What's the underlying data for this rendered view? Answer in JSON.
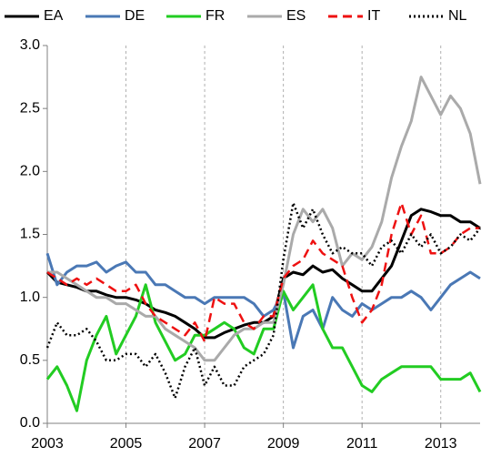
{
  "chart_data": {
    "type": "line",
    "x": [
      2003,
      2003.25,
      2003.5,
      2003.75,
      2004,
      2004.25,
      2004.5,
      2004.75,
      2005,
      2005.25,
      2005.5,
      2005.75,
      2006,
      2006.25,
      2006.5,
      2006.75,
      2007,
      2007.25,
      2007.5,
      2007.75,
      2008,
      2008.25,
      2008.5,
      2008.75,
      2009,
      2009.25,
      2009.5,
      2009.75,
      2010,
      2010.25,
      2010.5,
      2010.75,
      2011,
      2011.25,
      2011.5,
      2011.75,
      2012,
      2012.25,
      2012.5,
      2012.75,
      2013,
      2013.25,
      2013.5,
      2013.75,
      2014
    ],
    "series": [
      {
        "name": "EA",
        "color": "#000000",
        "style": "solid",
        "values": [
          1.2,
          1.12,
          1.1,
          1.08,
          1.05,
          1.05,
          1.02,
          1.0,
          1.0,
          0.98,
          0.95,
          0.9,
          0.88,
          0.85,
          0.8,
          0.75,
          0.68,
          0.68,
          0.72,
          0.75,
          0.78,
          0.8,
          0.8,
          0.85,
          1.15,
          1.2,
          1.18,
          1.25,
          1.2,
          1.22,
          1.15,
          1.1,
          1.05,
          1.05,
          1.15,
          1.25,
          1.45,
          1.65,
          1.7,
          1.68,
          1.65,
          1.65,
          1.6,
          1.6,
          1.55
        ]
      },
      {
        "name": "DE",
        "color": "#4a78b5",
        "style": "solid",
        "values": [
          1.35,
          1.1,
          1.2,
          1.25,
          1.25,
          1.28,
          1.2,
          1.25,
          1.28,
          1.2,
          1.2,
          1.1,
          1.1,
          1.05,
          1.0,
          1.0,
          0.95,
          1.0,
          1.0,
          1.0,
          1.0,
          0.95,
          0.85,
          0.9,
          1.05,
          0.6,
          0.85,
          0.9,
          0.75,
          1.0,
          0.9,
          0.85,
          0.95,
          0.9,
          0.95,
          1.0,
          1.0,
          1.05,
          1.0,
          0.9,
          1.0,
          1.1,
          1.15,
          1.2,
          1.15
        ]
      },
      {
        "name": "FR",
        "color": "#22cc22",
        "style": "solid",
        "values": [
          0.35,
          0.45,
          0.3,
          0.1,
          0.5,
          0.7,
          0.85,
          0.55,
          0.7,
          0.85,
          1.1,
          0.8,
          0.65,
          0.5,
          0.55,
          0.7,
          0.7,
          0.75,
          0.8,
          0.75,
          0.6,
          0.55,
          0.75,
          0.75,
          1.05,
          0.9,
          1.0,
          1.1,
          0.75,
          0.6,
          0.6,
          0.45,
          0.3,
          0.25,
          0.35,
          0.4,
          0.45,
          0.45,
          0.45,
          0.45,
          0.35,
          0.35,
          0.35,
          0.4,
          0.25
        ]
      },
      {
        "name": "ES",
        "color": "#aaaaaa",
        "style": "solid",
        "values": [
          1.2,
          1.2,
          1.15,
          1.1,
          1.05,
          1.0,
          1.0,
          0.95,
          0.95,
          0.9,
          0.85,
          0.85,
          0.75,
          0.7,
          0.65,
          0.6,
          0.5,
          0.5,
          0.6,
          0.7,
          0.75,
          0.75,
          0.8,
          0.8,
          1.1,
          1.5,
          1.7,
          1.6,
          1.7,
          1.55,
          1.25,
          1.35,
          1.3,
          1.4,
          1.6,
          1.95,
          2.2,
          2.4,
          2.75,
          2.6,
          2.45,
          2.6,
          2.5,
          2.3,
          1.9
        ]
      },
      {
        "name": "IT",
        "color": "#ee1111",
        "style": "dashed",
        "values": [
          1.2,
          1.15,
          1.1,
          1.15,
          1.1,
          1.15,
          1.1,
          1.05,
          1.05,
          1.1,
          0.95,
          0.85,
          0.8,
          0.75,
          0.7,
          0.8,
          0.65,
          1.0,
          0.95,
          0.95,
          0.8,
          0.75,
          0.85,
          0.85,
          1.15,
          1.25,
          1.3,
          1.45,
          1.35,
          1.3,
          1.25,
          1.0,
          0.8,
          0.9,
          1.1,
          1.5,
          1.75,
          1.5,
          1.65,
          1.35,
          1.35,
          1.4,
          1.5,
          1.55,
          1.55
        ]
      },
      {
        "name": "NL",
        "color": "#000000",
        "style": "dotted",
        "values": [
          0.6,
          0.8,
          0.7,
          0.7,
          0.75,
          0.65,
          0.5,
          0.5,
          0.55,
          0.55,
          0.45,
          0.55,
          0.4,
          0.2,
          0.45,
          0.6,
          0.3,
          0.45,
          0.3,
          0.3,
          0.45,
          0.5,
          0.55,
          0.7,
          1.3,
          1.75,
          1.55,
          1.7,
          1.5,
          1.35,
          1.4,
          1.35,
          1.35,
          1.25,
          1.4,
          1.45,
          1.35,
          1.5,
          1.4,
          1.5,
          1.35,
          1.4,
          1.5,
          1.45,
          1.55
        ]
      }
    ],
    "xlim": [
      2003,
      2014
    ],
    "xticks": [
      2003,
      2005,
      2007,
      2009,
      2011,
      2013
    ],
    "ylim": [
      0,
      3
    ],
    "yticks": [
      {
        "value": 0,
        "label": "0.0"
      },
      0.5,
      {
        "value": 1,
        "label": "1.0"
      },
      1.5,
      {
        "value": 2,
        "label": "2.0"
      },
      2.5,
      {
        "value": 3,
        "label": "3.0"
      }
    ],
    "grid": "x",
    "legend": "top"
  }
}
